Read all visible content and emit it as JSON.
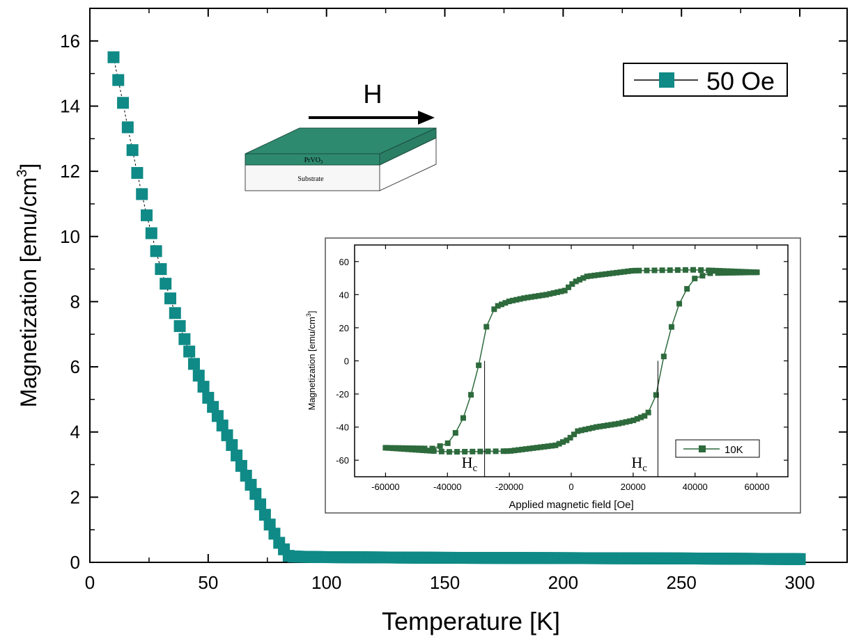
{
  "chart_data": [
    {
      "type": "scatter",
      "xlabel": "Temperature [K]",
      "ylabel": "Magnetization [emu/cm",
      "ylabel_sup": "3",
      "ylabel_close": "]",
      "xlim": [
        0,
        320
      ],
      "ylim": [
        0,
        17
      ],
      "x_ticks": [
        0,
        50,
        100,
        150,
        200,
        250,
        300
      ],
      "y_ticks": [
        0,
        2,
        4,
        6,
        8,
        10,
        12,
        14,
        16
      ],
      "legend_position": "top-right",
      "series": [
        {
          "name": "50 Oe",
          "color": "#0f8a86",
          "marker": "square",
          "line": "dashed",
          "anchors": [
            [
              10,
              15.5
            ],
            [
              12,
              14.8
            ],
            [
              14,
              14.1
            ],
            [
              16,
              13.35
            ],
            [
              18,
              12.65
            ],
            [
              20,
              11.95
            ],
            [
              22,
              11.3
            ],
            [
              24,
              10.65
            ],
            [
              26,
              10.1
            ],
            [
              28,
              9.55
            ],
            [
              30,
              9.0
            ],
            [
              32,
              8.55
            ],
            [
              34,
              8.1
            ],
            [
              36,
              7.65
            ],
            [
              38,
              7.25
            ],
            [
              40,
              6.85
            ],
            [
              45,
              5.9
            ],
            [
              50,
              5.05
            ],
            [
              55,
              4.35
            ],
            [
              60,
              3.6
            ],
            [
              65,
              2.8
            ],
            [
              70,
              2.1
            ],
            [
              75,
              1.3
            ],
            [
              80,
              0.6
            ],
            [
              84,
              0.2
            ],
            [
              86,
              0.18
            ],
            [
              90,
              0.17
            ],
            [
              100,
              0.16
            ],
            [
              150,
              0.14
            ],
            [
              200,
              0.13
            ],
            [
              250,
              0.12
            ],
            [
              300,
              0.1
            ]
          ]
        }
      ]
    },
    {
      "type": "line",
      "xlabel": "Applied magnetic field [Oe]",
      "ylabel": "Magnetization [emu/cm",
      "ylabel_sup": "3",
      "ylabel_close": "]",
      "xlim": [
        -70000,
        70000
      ],
      "ylim": [
        -70,
        70
      ],
      "x_ticks": [
        -60000,
        -40000,
        -20000,
        0,
        20000,
        40000,
        60000
      ],
      "y_ticks": [
        -60,
        -40,
        -20,
        0,
        20,
        40,
        60
      ],
      "legend_position": "bottom-right",
      "series": [
        {
          "name": "10K",
          "color": "#2d6a3c",
          "marker": "square",
          "branch": "descending",
          "anchors": [
            [
              60000,
              53.5
            ],
            [
              40000,
              55
            ],
            [
              20000,
              54.5
            ],
            [
              5000,
              51
            ],
            [
              1500,
              48
            ],
            [
              0,
              46
            ],
            [
              -2000,
              42.5
            ],
            [
              -8000,
              40
            ],
            [
              -15000,
              38
            ],
            [
              -20000,
              36
            ],
            [
              -24000,
              33
            ],
            [
              -26000,
              29
            ],
            [
              -27500,
              20
            ],
            [
              -28500,
              8
            ],
            [
              -29500,
              0
            ],
            [
              -31000,
              -10
            ],
            [
              -33000,
              -25
            ],
            [
              -36000,
              -40
            ],
            [
              -40000,
              -50
            ],
            [
              -45000,
              -53
            ],
            [
              -60000,
              -52.5
            ]
          ]
        },
        {
          "name": "10K",
          "color": "#2d6a3c",
          "marker": "square",
          "branch": "ascending",
          "anchors": [
            [
              -60000,
              -52.5
            ],
            [
              -40000,
              -55
            ],
            [
              -20000,
              -54.5
            ],
            [
              -5000,
              -51
            ],
            [
              -1500,
              -48
            ],
            [
              0,
              -46
            ],
            [
              2000,
              -42.5
            ],
            [
              8000,
              -40
            ],
            [
              15000,
              -38
            ],
            [
              20000,
              -36
            ],
            [
              24000,
              -33
            ],
            [
              26000,
              -29
            ],
            [
              27500,
              -20
            ],
            [
              28500,
              -8
            ],
            [
              29500,
              0
            ],
            [
              31000,
              10
            ],
            [
              33000,
              25
            ],
            [
              36000,
              40
            ],
            [
              40000,
              50
            ],
            [
              45000,
              53
            ],
            [
              60000,
              53.5
            ]
          ]
        }
      ],
      "annotations": [
        {
          "text": "H",
          "sub": "c",
          "x": -28000
        },
        {
          "text": "H",
          "sub": "c",
          "x": 28000
        }
      ]
    }
  ],
  "schematic": {
    "field_label": "H",
    "film_label": "PrVO",
    "film_label_sub": "3",
    "substrate_label": "Substrate",
    "film_color": "#2e8a6e"
  }
}
